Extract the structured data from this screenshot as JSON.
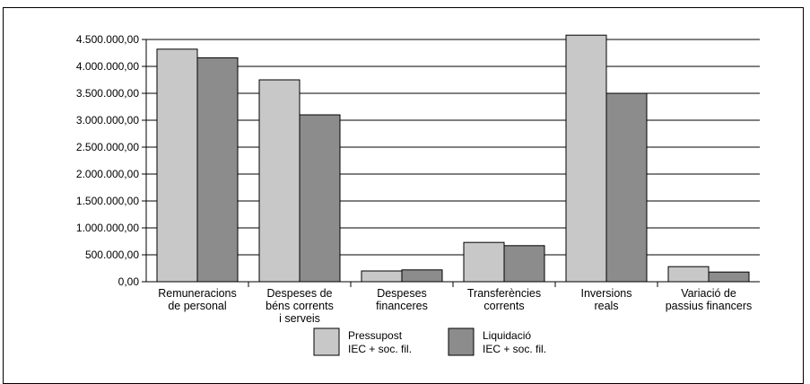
{
  "chart_data": {
    "type": "bar",
    "categories": [
      [
        "Remuneracions",
        "de personal"
      ],
      [
        "Despeses de",
        "béns corrents",
        "i serveis"
      ],
      [
        "Despeses",
        "financeres"
      ],
      [
        "Transferències",
        "corrents"
      ],
      [
        "Inversions",
        "reals"
      ],
      [
        "Variació de",
        "passius financers"
      ]
    ],
    "series": [
      {
        "name": [
          "Pressupost",
          "IEC + soc. fil."
        ],
        "color": "#c8c8c8",
        "values": [
          4320000,
          3750000,
          200000,
          730000,
          4580000,
          280000
        ]
      },
      {
        "name": [
          "Liquidació",
          "IEC + soc. fil."
        ],
        "color": "#8c8c8c",
        "values": [
          4160000,
          3100000,
          220000,
          670000,
          3500000,
          180000
        ]
      }
    ],
    "yticks": [
      "0,00",
      "500.000,00",
      "1.000.000,00",
      "1.500.000,00",
      "2.000.000,00",
      "2.500.000,00",
      "3.000.000,00",
      "3.500.000,00",
      "4.000.000,00",
      "4.500.000,00"
    ],
    "ylim": [
      0,
      4500000
    ],
    "title": "",
    "xlabel": "",
    "ylabel": "",
    "grid": true,
    "legend_position": "bottom"
  }
}
